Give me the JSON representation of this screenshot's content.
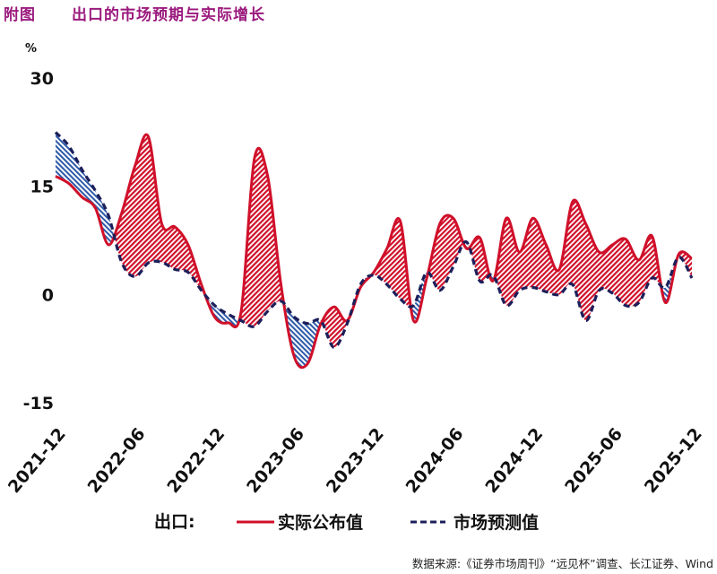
{
  "header": {
    "figure_label": "附图",
    "title": "出口的市场预期与实际增长"
  },
  "source": "数据来源:《证券市场周刊》“远见杯”调查、长江证券、Wind",
  "chart_data": {
    "type": "line",
    "title": "出口的市场预期与实际增长",
    "ylabel": "%",
    "ylim": [
      -15,
      30
    ],
    "yticks": [
      "30",
      "15",
      "0",
      "-15"
    ],
    "ytick_values": [
      30,
      15,
      0,
      -15
    ],
    "x_start": "2021-12",
    "x_end": "2025-12",
    "x_frequency": "monthly",
    "xticks": [
      "2021-12",
      "2022-06",
      "2022-12",
      "2023-06",
      "2023-12",
      "2024-06",
      "2024-12",
      "2025-06",
      "2025-12"
    ],
    "grid": false,
    "legend_prefix": "出口:",
    "legend_position": "bottom",
    "fill_between": {
      "actual_above_color": "#d0102a",
      "actual_below_color": "#2e5aa8",
      "style": "hatched"
    },
    "series": [
      {
        "name": "实际公布值",
        "color": "#d0102a",
        "style": "solid",
        "values": [
          16.5,
          15.5,
          13.6,
          12.1,
          7,
          11.5,
          18,
          22,
          10,
          9.5,
          7,
          1.5,
          -3,
          -3.8,
          -2.2,
          19,
          16.5,
          1.5,
          -8.5,
          -9.5,
          -4,
          -1.6,
          -3.5,
          1.1,
          3.2,
          6.5,
          10.3,
          -3.5,
          2.4,
          10,
          10.7,
          6.5,
          8,
          2,
          10.7,
          6,
          10.7,
          7,
          3.6,
          13,
          9.9,
          6,
          7,
          7.8,
          4.9,
          8.2,
          -1,
          5.7,
          5.1
        ]
      },
      {
        "name": "市场预测值",
        "color": "#1c1f5a",
        "style": "dashed",
        "values": [
          22.6,
          20.7,
          17.4,
          14.5,
          11,
          4.5,
          2.6,
          4.5,
          4.6,
          3.6,
          3.2,
          0.7,
          -1.4,
          -2.6,
          -3.5,
          -4.3,
          -2.2,
          -0.8,
          -3,
          -3.9,
          -3.5,
          -7.2,
          -3.9,
          1.5,
          2.8,
          1.5,
          -0.5,
          -1.4,
          3.2,
          0.7,
          4,
          7.4,
          2,
          2.8,
          -1.4,
          0.7,
          1.1,
          0.5,
          0.1,
          1.5,
          -3.5,
          0.7,
          0.3,
          -1.4,
          -1,
          2.4,
          1.1,
          5.3,
          2.4
        ]
      }
    ]
  }
}
